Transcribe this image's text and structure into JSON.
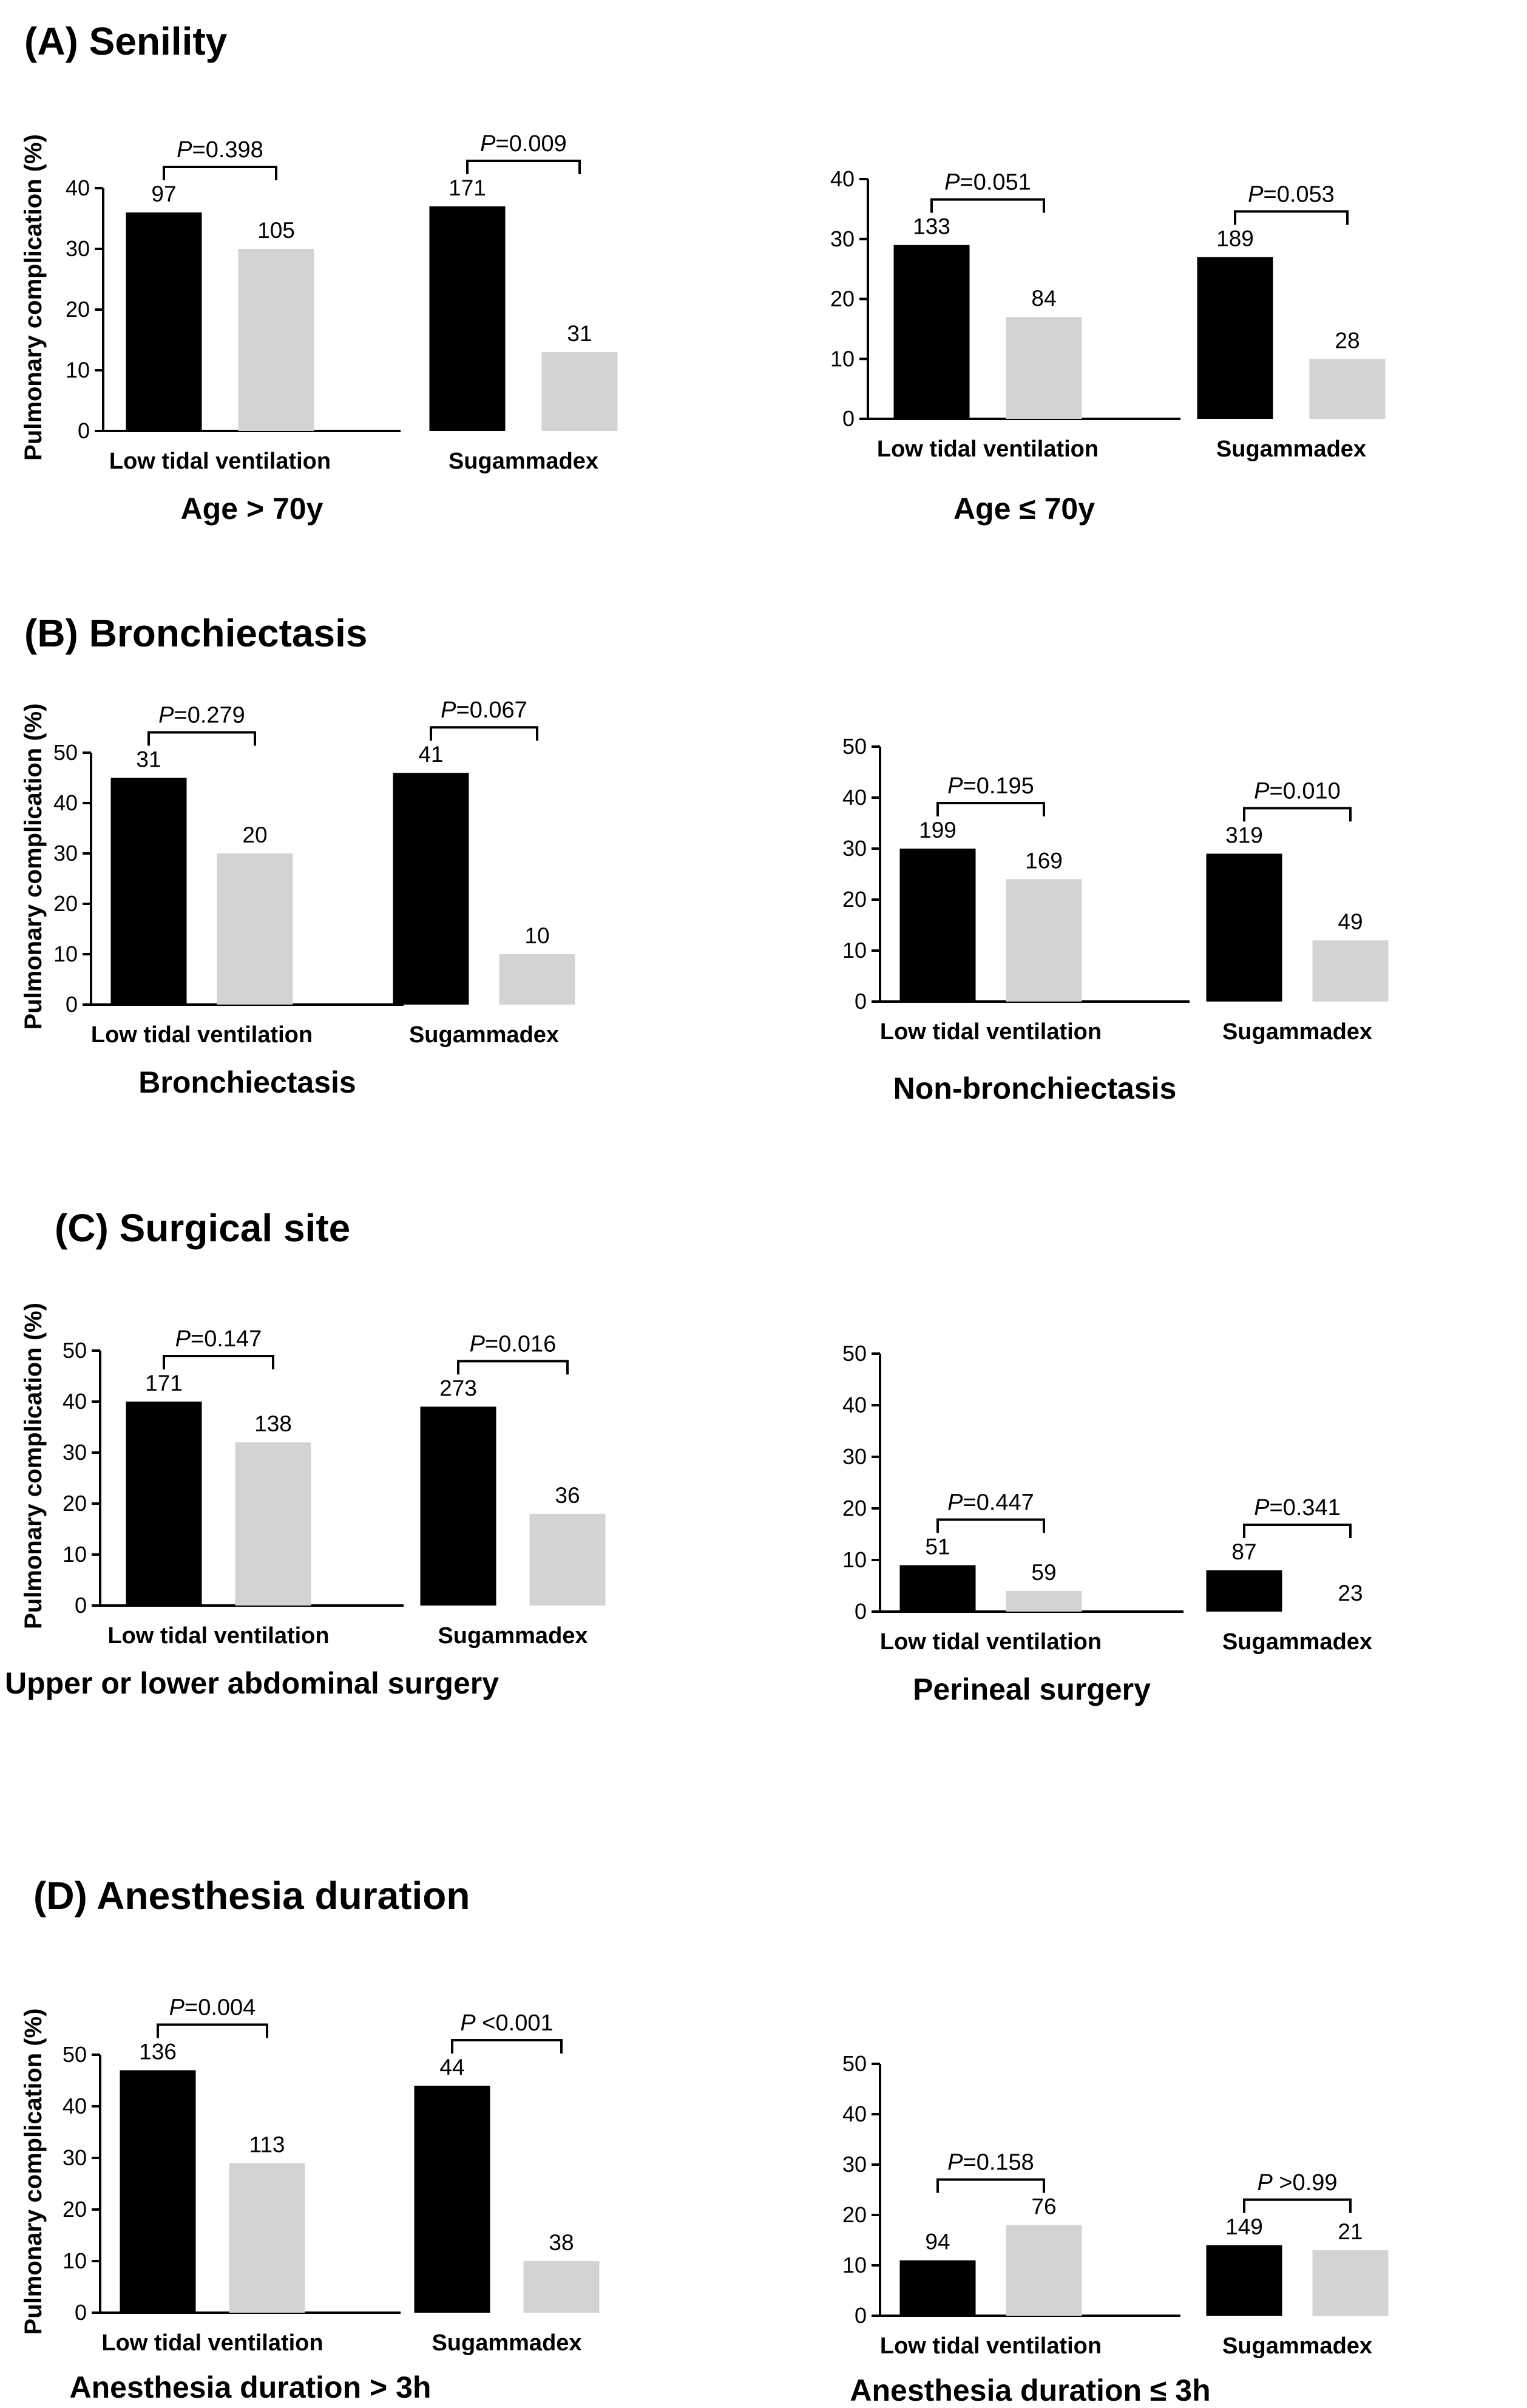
{
  "figure": {
    "sections": [
      {
        "title": "(A) Senility"
      },
      {
        "title": "(B)  Bronchiectasis"
      },
      {
        "title": "(C)  Surgical site"
      },
      {
        "title": "(D)  Anesthesia duration"
      }
    ],
    "y_axis_title": "Pulmonary complication  (%)"
  },
  "chart_data": [
    {
      "type": "bar",
      "title": "Age > 70y",
      "ylabel": "Pulmonary complication  (%)",
      "ylim": [
        0,
        40
      ],
      "yticks": [
        0,
        10,
        20,
        30,
        40
      ],
      "categories": [
        "Low tidal ventilation",
        "Sugammadex"
      ],
      "series": [
        {
          "values": [
            36,
            37
          ],
          "n_labels": [
            "97",
            "171"
          ],
          "color": "#000000"
        },
        {
          "values": [
            30,
            13
          ],
          "n_labels": [
            "105",
            "31"
          ],
          "color": "#d3d3d3"
        }
      ],
      "p_values": [
        "=0.398",
        "=0.009"
      ]
    },
    {
      "type": "bar",
      "title": "Age ≤ 70y",
      "ylabel": "",
      "ylim": [
        0,
        40
      ],
      "yticks": [
        0,
        10,
        20,
        30,
        40
      ],
      "categories": [
        "Low tidal ventilation",
        "Sugammadex"
      ],
      "series": [
        {
          "values": [
            29,
            27
          ],
          "n_labels": [
            "133",
            "189"
          ],
          "color": "#000000"
        },
        {
          "values": [
            17,
            10
          ],
          "n_labels": [
            "84",
            "28"
          ],
          "color": "#d3d3d3"
        }
      ],
      "p_values": [
        "=0.051",
        "=0.053"
      ]
    },
    {
      "type": "bar",
      "title": "Bronchiectasis",
      "ylabel": "Pulmonary complication  (%)",
      "ylim": [
        0,
        50
      ],
      "yticks": [
        0,
        10,
        20,
        30,
        40,
        50
      ],
      "categories": [
        "Low tidal ventilation",
        "Sugammadex"
      ],
      "series": [
        {
          "values": [
            45,
            46
          ],
          "n_labels": [
            "31",
            "41"
          ],
          "color": "#000000"
        },
        {
          "values": [
            30,
            10
          ],
          "n_labels": [
            "20",
            "10"
          ],
          "color": "#d3d3d3"
        }
      ],
      "p_values": [
        "=0.279",
        "=0.067"
      ]
    },
    {
      "type": "bar",
      "title": "Non-bronchiectasis",
      "ylabel": "",
      "ylim": [
        0,
        50
      ],
      "yticks": [
        0,
        10,
        20,
        30,
        40,
        50
      ],
      "categories": [
        "Low tidal ventilation",
        "Sugammadex"
      ],
      "series": [
        {
          "values": [
            30,
            29
          ],
          "n_labels": [
            "199",
            "319"
          ],
          "color": "#000000"
        },
        {
          "values": [
            24,
            12
          ],
          "n_labels": [
            "169",
            "49"
          ],
          "color": "#d3d3d3"
        }
      ],
      "p_values": [
        "=0.195",
        "=0.010"
      ]
    },
    {
      "type": "bar",
      "title": "Upper or lower abdominal surgery",
      "ylabel": "Pulmonary complication  (%)",
      "ylim": [
        0,
        50
      ],
      "yticks": [
        0,
        10,
        20,
        30,
        40,
        50
      ],
      "categories": [
        "Low tidal ventilation",
        "Sugammadex"
      ],
      "series": [
        {
          "values": [
            40,
            39
          ],
          "n_labels": [
            "171",
            "273"
          ],
          "color": "#000000"
        },
        {
          "values": [
            32,
            18
          ],
          "n_labels": [
            "138",
            "36"
          ],
          "color": "#d3d3d3"
        }
      ],
      "p_values": [
        "=0.147",
        "=0.016"
      ]
    },
    {
      "type": "bar",
      "title": "Perineal surgery",
      "ylabel": "",
      "ylim": [
        0,
        50
      ],
      "yticks": [
        0,
        10,
        20,
        30,
        40,
        50
      ],
      "categories": [
        "Low tidal ventilation",
        "Sugammadex"
      ],
      "series": [
        {
          "values": [
            9,
            8
          ],
          "n_labels": [
            "51",
            "87"
          ],
          "color": "#000000"
        },
        {
          "values": [
            4,
            0
          ],
          "n_labels": [
            "59",
            "23"
          ],
          "color": "#d3d3d3"
        }
      ],
      "p_values": [
        "=0.447",
        "=0.341"
      ]
    },
    {
      "type": "bar",
      "title": "Anesthesia duration > 3h",
      "ylabel": "Pulmonary complication  (%)",
      "ylim": [
        0,
        50
      ],
      "yticks": [
        0,
        10,
        20,
        30,
        40,
        50
      ],
      "categories": [
        "Low tidal ventilation",
        "Sugammadex"
      ],
      "series": [
        {
          "values": [
            47,
            44
          ],
          "n_labels": [
            "136",
            "44"
          ],
          "color": "#000000"
        },
        {
          "values": [
            29,
            10
          ],
          "n_labels": [
            "113",
            "38"
          ],
          "color": "#d3d3d3"
        }
      ],
      "p_values": [
        "=0.004",
        " <0.001"
      ]
    },
    {
      "type": "bar",
      "title": "Anesthesia duration ≤ 3h",
      "ylabel": "",
      "ylim": [
        0,
        50
      ],
      "yticks": [
        0,
        10,
        20,
        30,
        40,
        50
      ],
      "categories": [
        "Low tidal ventilation",
        "Sugammadex"
      ],
      "series": [
        {
          "values": [
            11,
            14
          ],
          "n_labels": [
            "94",
            "149"
          ],
          "color": "#000000"
        },
        {
          "values": [
            18,
            13
          ],
          "n_labels": [
            "76",
            "21"
          ],
          "color": "#d3d3d3"
        }
      ],
      "p_values": [
        "=0.158",
        " >0.99"
      ]
    }
  ]
}
